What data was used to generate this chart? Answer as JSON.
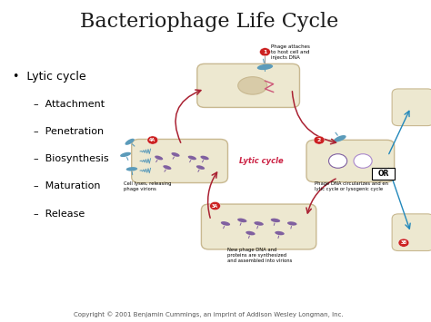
{
  "title": "Bacteriophage Life Cycle",
  "title_fontsize": 16,
  "title_color": "#1a1a1a",
  "bg_color": "#ffffff",
  "bullet_main": "Lytic cycle",
  "bullet_subs": [
    "Attachment",
    "Penetration",
    "Biosynthesis",
    "Maturation",
    "Release"
  ],
  "bullet_main_fontsize": 9,
  "bullet_sub_fontsize": 8,
  "cell_color": "#ede8d0",
  "cell_edge": "#c8b890",
  "phage_teal": "#5b9bba",
  "phage_purple": "#8060a0",
  "phage_pink": "#cc5577",
  "arrow_red": "#aa2233",
  "arrow_blue": "#2288bb",
  "label_lytic_color": "#cc2244",
  "copyright": "Copyright © 2001 Benjamin Cummings, an imprint of Addison Wesley Longman, Inc.",
  "copyright_fontsize": 5,
  "num_circle_color": "#cc2222",
  "c1x": 0.595,
  "c1y": 0.735,
  "c2x": 0.84,
  "c2y": 0.5,
  "c3x": 0.62,
  "c3y": 0.295,
  "c4x": 0.43,
  "c4y": 0.5
}
